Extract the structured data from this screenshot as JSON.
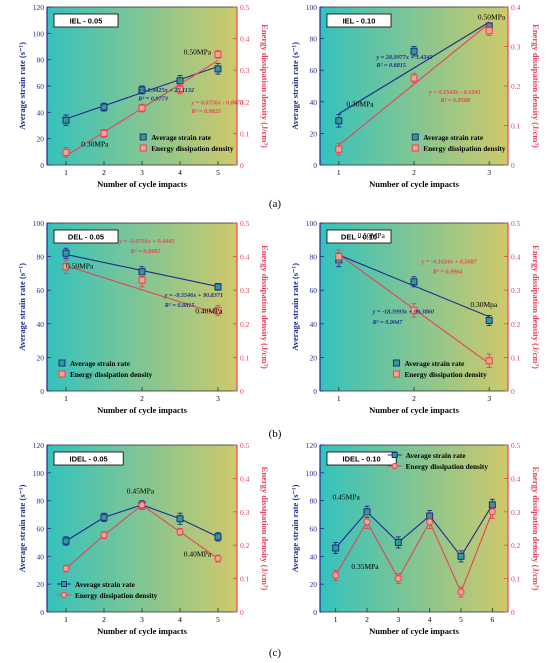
{
  "figure": {
    "row_labels": [
      "(a)",
      "(b)",
      "(c)"
    ],
    "colors": {
      "strain": "#1f2a8c",
      "energy": "#e8415a",
      "bg_left": "#3ec0b8",
      "bg_right": "#c7c96a"
    }
  },
  "chart_data": [
    {
      "id": "IEL-0.05",
      "type": "line",
      "title": "IEL - 0.05",
      "xlabel": "Number of cycle impacts",
      "ylabel": "Average strain rate (s⁻¹)",
      "y2label": "Energy dissipation density (J/cm³)",
      "x": [
        1,
        2,
        3,
        4,
        5
      ],
      "xlim": [
        0.5,
        5.5
      ],
      "ylim": [
        0,
        120
      ],
      "y2lim": [
        0,
        0.5
      ],
      "yticks": [
        "0",
        "20",
        "40",
        "60",
        "80",
        "100",
        "120"
      ],
      "y2ticks": [
        "0",
        "0.1",
        "0.2",
        "0.3",
        "0.4",
        "0.5"
      ],
      "grid": false,
      "legend": "bottom-right",
      "style": "fit",
      "series": [
        {
          "name": "Average strain rate",
          "axis": "left",
          "values": [
            34,
            44,
            57,
            64,
            73
          ],
          "errors": [
            4,
            3,
            3,
            4,
            4
          ],
          "fit": {
            "slope": 9.9425,
            "intercept": 25.1132
          }
        },
        {
          "name": "Energy dissipation density",
          "axis": "right",
          "values": [
            0.04,
            0.1,
            0.18,
            0.24,
            0.35
          ],
          "errors": [
            0.015,
            0.012,
            0.012,
            0.015,
            0.012
          ],
          "fit": {
            "slope": 0.0756,
            "intercept": -0.047
          }
        }
      ],
      "annotations": [
        {
          "text": "0.30MPa",
          "x": 1.4,
          "y": 14,
          "axis": "left",
          "color": "#000"
        },
        {
          "text": "0.50MPa",
          "x": 4.1,
          "y": 84,
          "axis": "left",
          "color": "#000"
        },
        {
          "text": "y = 9.9425x + 25.1132",
          "x": 2.9,
          "y": 55.5,
          "axis": "left",
          "color": "#1f2a8c"
        },
        {
          "text": "R² = 0.9773",
          "x": 2.9,
          "y": 49,
          "axis": "left",
          "color": "#1f2a8c"
        },
        {
          "text": "y = 0.0756x - 0.0470",
          "x": 4.3,
          "y": 46,
          "axis": "left",
          "color": "#e8415a"
        },
        {
          "text": "R² = 0.9825",
          "x": 4.3,
          "y": 39.5,
          "axis": "left",
          "color": "#e8415a"
        }
      ]
    },
    {
      "id": "IEL-0.10",
      "type": "line",
      "title": "IEL - 0.10",
      "xlabel": "Number of cycle impacts",
      "ylabel": "Average strain rate (s⁻¹)",
      "y2label": "Energy dissipation density (J/cm³)",
      "x": [
        1,
        2,
        3
      ],
      "xlim": [
        0.75,
        3.25
      ],
      "ylim": [
        0,
        100
      ],
      "y2lim": [
        0,
        0.4
      ],
      "yticks": [
        "0",
        "20",
        "40",
        "60",
        "80",
        "100"
      ],
      "y2ticks": [
        "0",
        "0.1",
        "0.2",
        "0.3",
        "0.4"
      ],
      "grid": false,
      "legend": "bottom-right",
      "style": "fit",
      "series": [
        {
          "name": "Average strain rate",
          "axis": "left",
          "values": [
            28,
            72,
            88
          ],
          "errors": [
            4,
            3,
            2
          ],
          "fit": {
            "slope": 28.9977,
            "intercept": 3.4245
          }
        },
        {
          "name": "Energy dissipation density",
          "axis": "right",
          "values": [
            0.04,
            0.22,
            0.34
          ],
          "errors": [
            0.015,
            0.012,
            0.012
          ],
          "fit": {
            "slope": 0.1543,
            "intercept": -0.1041
          }
        }
      ],
      "annotations": [
        {
          "text": "0.30MPa",
          "x": 1.1,
          "y": 37,
          "axis": "left",
          "color": "#000"
        },
        {
          "text": "0.50MPa",
          "x": 2.85,
          "y": 92,
          "axis": "left",
          "color": "#000"
        },
        {
          "text": "y = 28.9977x + 3.4245",
          "x": 1.5,
          "y": 67,
          "axis": "left",
          "color": "#1f2a8c"
        },
        {
          "text": "R² = 0.8815",
          "x": 1.5,
          "y": 62,
          "axis": "left",
          "color": "#1f2a8c"
        },
        {
          "text": "y = 0.1543x - 0.1041",
          "x": 2.2,
          "y": 45,
          "axis": "left",
          "color": "#e8415a"
        },
        {
          "text": "R² = 0.9588",
          "x": 2.35,
          "y": 40,
          "axis": "left",
          "color": "#e8415a"
        }
      ]
    },
    {
      "id": "DEL-0.05",
      "type": "line",
      "title": "DEL - 0.05",
      "xlabel": "Number of cycle impacts",
      "ylabel": "Average strain rate (s⁻¹)",
      "y2label": "Energy dissipation density (J/cm³)",
      "x": [
        1,
        2,
        3
      ],
      "xlim": [
        0.75,
        3.25
      ],
      "ylim": [
        0,
        100
      ],
      "y2lim": [
        0,
        0.5
      ],
      "yticks": [
        "0",
        "20",
        "40",
        "60",
        "80",
        "100"
      ],
      "y2ticks": [
        "0",
        "0.1",
        "0.2",
        "0.3",
        "0.4",
        "0.5"
      ],
      "grid": false,
      "legend": "bottom-left",
      "style": "fit",
      "series": [
        {
          "name": "Average strain rate",
          "axis": "left",
          "values": [
            82,
            71,
            62
          ],
          "errors": [
            3,
            3,
            2
          ],
          "fit": {
            "slope": -9.5546,
            "intercept": 90.8371
          }
        },
        {
          "name": "Energy dissipation density",
          "axis": "right",
          "values": [
            0.37,
            0.33,
            0.24
          ],
          "errors": [
            0.02,
            0.02,
            0.015
          ],
          "fit": {
            "slope": -0.0716,
            "intercept": 0.4443
          }
        }
      ],
      "annotations": [
        {
          "text": "0.50MPa",
          "x": 1.0,
          "y": 73,
          "axis": "left",
          "color": "#000"
        },
        {
          "text": "0.40MPa",
          "x": 2.7,
          "y": 46,
          "axis": "left",
          "color": "#000"
        },
        {
          "text": "y = -0.0716x + 0.4443",
          "x": 1.7,
          "y": 88,
          "axis": "left",
          "color": "#e8415a"
        },
        {
          "text": "R² = 0.8482",
          "x": 1.85,
          "y": 82,
          "axis": "left",
          "color": "#e8415a"
        },
        {
          "text": "y = -9.5546x + 90.8371",
          "x": 2.3,
          "y": 56,
          "axis": "left",
          "color": "#1f2a8c"
        },
        {
          "text": "R² = 0.8815",
          "x": 2.3,
          "y": 50,
          "axis": "left",
          "color": "#1f2a8c"
        }
      ]
    },
    {
      "id": "DEL-0.10",
      "type": "line",
      "title": "DEL - 0.10",
      "xlabel": "Number of cycle impacts",
      "ylabel": "Average strain rate (s⁻¹)",
      "y2label": "Energy dissipation density (J/cm³)",
      "x": [
        1,
        2,
        3
      ],
      "xlim": [
        0.75,
        3.25
      ],
      "ylim": [
        0,
        100
      ],
      "y2lim": [
        0,
        0.5
      ],
      "yticks": [
        "0",
        "20",
        "40",
        "60",
        "80",
        "100"
      ],
      "y2ticks": [
        "0",
        "0.1",
        "0.2",
        "0.3",
        "0.4",
        "0.5"
      ],
      "grid": false,
      "legend": "bottom-center",
      "style": "fit",
      "series": [
        {
          "name": "Average strain rate",
          "axis": "left",
          "values": [
            78,
            65,
            42
          ],
          "errors": [
            4,
            3,
            3
          ],
          "fit": {
            "slope": -18.3993,
            "intercept": 99.386
          }
        },
        {
          "name": "Energy dissipation density",
          "axis": "right",
          "values": [
            0.4,
            0.24,
            0.09
          ],
          "errors": [
            0.02,
            0.02,
            0.02
          ],
          "fit": {
            "slope": -0.1624,
            "intercept": 0.5687
          }
        }
      ],
      "annotations": [
        {
          "text": "0.50MPa",
          "x": 1.25,
          "y": 91,
          "axis": "left",
          "color": "#000"
        },
        {
          "text": "0.30Mpa",
          "x": 2.75,
          "y": 50,
          "axis": "left",
          "color": "#000"
        },
        {
          "text": "y = -0.1624x + 0.5687",
          "x": 2.1,
          "y": 76,
          "axis": "left",
          "color": "#e8415a"
        },
        {
          "text": "R² = 0.9964",
          "x": 2.25,
          "y": 70,
          "axis": "left",
          "color": "#e8415a"
        },
        {
          "text": "y = -18.3993x + 99.3860",
          "x": 1.45,
          "y": 46,
          "axis": "left",
          "color": "#1f2a8c"
        },
        {
          "text": "R² = 0.9047",
          "x": 1.45,
          "y": 40,
          "axis": "left",
          "color": "#1f2a8c"
        }
      ]
    },
    {
      "id": "IDEL-0.05",
      "type": "line",
      "title": "IDEL - 0.05",
      "xlabel": "Number of cycle impacts",
      "ylabel": "Average strain rate (s⁻¹)",
      "y2label": "Energy dissipation density (J/cm³)",
      "x": [
        1,
        2,
        3,
        4,
        5
      ],
      "xlim": [
        0.5,
        5.5
      ],
      "ylim": [
        0,
        120
      ],
      "y2lim": [
        0,
        0.5
      ],
      "yticks": [
        "0",
        "20",
        "40",
        "60",
        "80",
        "100",
        "120"
      ],
      "y2ticks": [
        "0",
        "0.1",
        "0.2",
        "0.3",
        "0.4",
        "0.5"
      ],
      "grid": false,
      "legend": "bottom-left",
      "style": "connected",
      "series": [
        {
          "name": "Average strain rate",
          "axis": "left",
          "values": [
            51,
            68,
            77,
            67,
            54
          ],
          "errors": [
            3,
            3,
            3,
            4,
            3
          ]
        },
        {
          "name": "Energy dissipation density",
          "axis": "right",
          "values": [
            0.13,
            0.23,
            0.32,
            0.24,
            0.16
          ],
          "errors": [
            0.01,
            0.01,
            0.01,
            0.01,
            0.01
          ]
        }
      ],
      "annotations": [
        {
          "text": "0.45MPa",
          "x": 2.6,
          "y": 85,
          "axis": "left",
          "color": "#000"
        },
        {
          "text": "0.40MPa",
          "x": 4.1,
          "y": 40,
          "axis": "left",
          "color": "#000"
        }
      ]
    },
    {
      "id": "IDEL-0.10",
      "type": "line",
      "title": "IDEL - 0.10",
      "xlabel": "Number of cycle impacts",
      "ylabel": "Average strain rate (s⁻¹)",
      "y2label": "Energy dissipation density (J/cm³)",
      "x": [
        1,
        2,
        3,
        4,
        5,
        6
      ],
      "xlim": [
        0.5,
        6.5
      ],
      "ylim": [
        0,
        120
      ],
      "y2lim": [
        0,
        0.5
      ],
      "yticks": [
        "0",
        "20",
        "40",
        "60",
        "80",
        "100",
        "120"
      ],
      "y2ticks": [
        "0",
        "0.1",
        "0.2",
        "0.3",
        "0.4",
        "0.5"
      ],
      "grid": false,
      "legend": "top-right",
      "style": "connected",
      "series": [
        {
          "name": "Average strain rate",
          "axis": "left",
          "values": [
            46,
            72,
            50,
            69,
            40,
            77
          ],
          "errors": [
            4,
            4,
            4,
            4,
            4,
            4
          ]
        },
        {
          "name": "Energy dissipation density",
          "axis": "right",
          "values": [
            0.11,
            0.27,
            0.1,
            0.27,
            0.06,
            0.3
          ],
          "errors": [
            0.015,
            0.02,
            0.015,
            0.02,
            0.015,
            0.02
          ]
        }
      ],
      "annotations": [
        {
          "text": "0.45MPa",
          "x": 0.9,
          "y": 81,
          "axis": "left",
          "color": "#000"
        },
        {
          "text": "0.35MPa",
          "x": 1.5,
          "y": 31,
          "axis": "left",
          "color": "#000"
        }
      ]
    }
  ]
}
